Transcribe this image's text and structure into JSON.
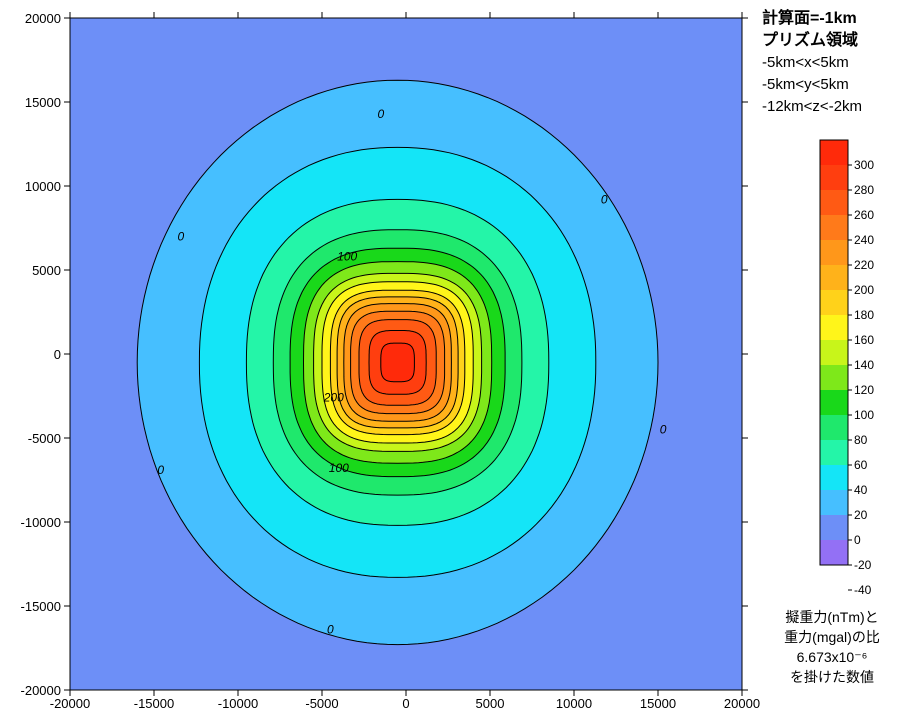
{
  "chart_data": {
    "type": "filled-contour",
    "title": "",
    "xlabel": "",
    "ylabel": "",
    "xlim": [
      -20000,
      20000
    ],
    "ylim": [
      -20000,
      20000
    ],
    "x_ticks": [
      -20000,
      -15000,
      -10000,
      -5000,
      0,
      5000,
      10000,
      15000,
      20000
    ],
    "y_ticks": [
      -20000,
      -15000,
      -10000,
      -5000,
      0,
      5000,
      10000,
      15000,
      20000
    ],
    "x_tick_labels": [
      "-20000",
      "-15000",
      "-10000",
      "-5000",
      "0",
      "5000",
      "10000",
      "15000",
      "20000"
    ],
    "y_tick_labels": [
      "-20000",
      "-15000",
      "-10000",
      "-5000",
      "0",
      "5000",
      "10000",
      "15000",
      "20000"
    ],
    "peak": {
      "x": -500,
      "y": -500,
      "value": 310
    },
    "contour_levels": [
      0,
      20,
      40,
      60,
      80,
      100,
      120,
      140,
      160,
      180,
      200,
      220,
      240,
      260,
      280,
      300
    ],
    "contours": [
      {
        "level": 0,
        "rx": 15500,
        "ry": 16800
      },
      {
        "level": 20,
        "rx": 11800,
        "ry": 12800
      },
      {
        "level": 40,
        "rx": 9000,
        "ry": 9700
      },
      {
        "level": 60,
        "rx": 7400,
        "ry": 7900
      },
      {
        "level": 80,
        "rx": 6400,
        "ry": 6800
      },
      {
        "level": 100,
        "rx": 5600,
        "ry": 6000
      },
      {
        "level": 120,
        "rx": 5000,
        "ry": 5300
      },
      {
        "level": 140,
        "rx": 4500,
        "ry": 4800
      },
      {
        "level": 160,
        "rx": 4000,
        "ry": 4300
      },
      {
        "level": 180,
        "rx": 3600,
        "ry": 3900
      },
      {
        "level": 200,
        "rx": 3200,
        "ry": 3500
      },
      {
        "level": 220,
        "rx": 2800,
        "ry": 3050
      },
      {
        "level": 240,
        "rx": 2300,
        "ry": 2550
      },
      {
        "level": 260,
        "rx": 1700,
        "ry": 1900
      },
      {
        "level": 280,
        "rx": 1000,
        "ry": 1150
      }
    ],
    "contour_labels": [
      {
        "text": "0",
        "x": -1500,
        "y": 14300
      },
      {
        "text": "0",
        "x": 11800,
        "y": 9200
      },
      {
        "text": "0",
        "x": -13400,
        "y": 7000
      },
      {
        "text": "0",
        "x": 15300,
        "y": -4500
      },
      {
        "text": "0",
        "x": -14600,
        "y": -6900
      },
      {
        "text": "0",
        "x": -4500,
        "y": -16400
      },
      {
        "text": "100",
        "x": -3500,
        "y": 5800
      },
      {
        "text": "200",
        "x": -4300,
        "y": -2600
      },
      {
        "text": "100",
        "x": -4000,
        "y": -6800
      }
    ],
    "colorbar": {
      "levels": [
        -40,
        -20,
        0,
        20,
        40,
        60,
        80,
        100,
        120,
        140,
        160,
        180,
        200,
        220,
        240,
        260,
        280,
        300
      ],
      "labels": [
        "300",
        "280",
        "260",
        "240",
        "220",
        "200",
        "180",
        "160",
        "140",
        "120",
        "100",
        "80",
        "60",
        "40",
        "20",
        "0",
        "-20",
        "-40"
      ],
      "colors": [
        "#9370f5",
        "#6d8ff7",
        "#46bfff",
        "#14e5f7",
        "#24f5a8",
        "#1fe86c",
        "#19d81a",
        "#7ee81a",
        "#c8f51a",
        "#fff51a",
        "#ffd21a",
        "#ffb21a",
        "#ff971a",
        "#ff7a1a",
        "#ff5a14",
        "#ff3e0f",
        "#ff2a0a"
      ],
      "background_color": "#6d8ff7"
    },
    "legend": "right"
  },
  "info": {
    "lines": [
      "計算面=-1km",
      "プリズム領域",
      "-5km<x<5km",
      "-5km<y<5km",
      "-12km<z<-2km"
    ]
  },
  "note": {
    "lines": [
      "擬重力(nTm)と",
      "重力(mgal)の比",
      "6.673x10⁻⁶",
      "を掛けた数値"
    ]
  }
}
